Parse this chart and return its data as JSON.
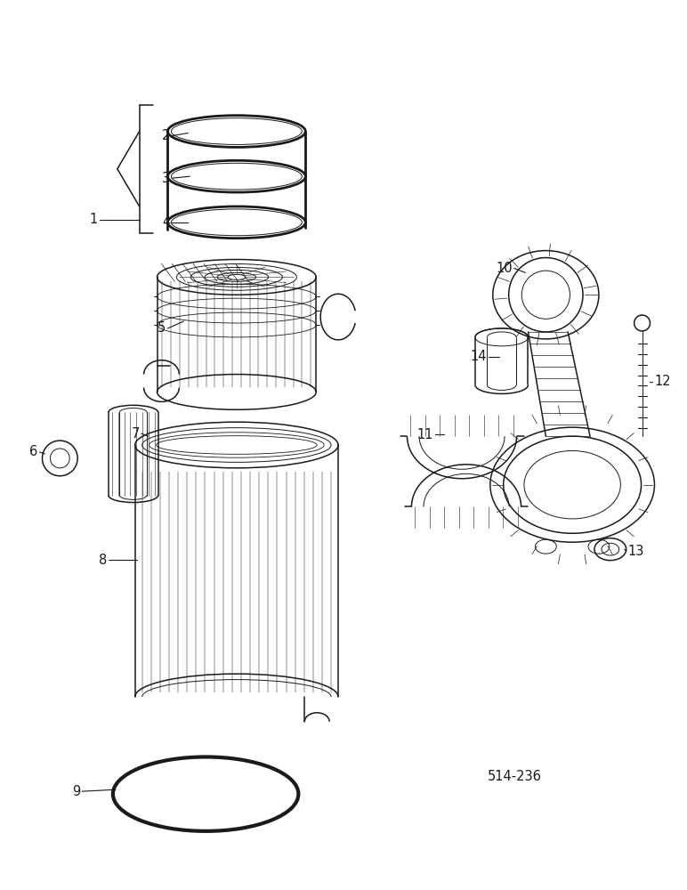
{
  "background_color": "#ffffff",
  "line_color": "#1a1a1a",
  "figure_width": 7.72,
  "figure_height": 10.0,
  "dpi": 100,
  "diagram_code_text": "514-236",
  "label_fontsize": 10.5
}
